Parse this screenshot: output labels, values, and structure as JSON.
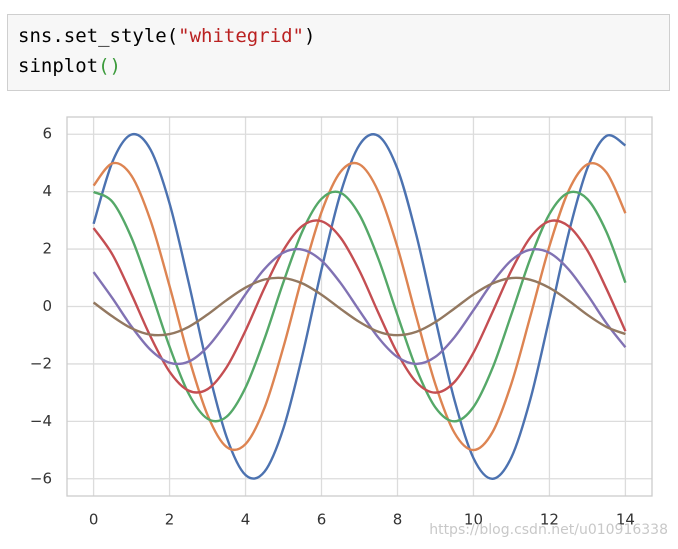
{
  "code": {
    "lines": [
      [
        "sns.set_style(",
        "\"whitegrid\"",
        ")"
      ],
      [
        "sinplot",
        "()"
      ]
    ]
  },
  "chart_data": {
    "type": "line",
    "x": [
      0,
      0.5,
      1,
      1.5,
      2,
      2.5,
      3,
      3.5,
      4,
      4.5,
      5,
      5.5,
      6,
      6.5,
      7,
      7.5,
      8,
      8.5,
      9,
      9.5,
      10,
      10.5,
      11,
      11.5,
      12,
      12.5,
      13,
      13.5,
      14
    ],
    "series": [
      {
        "color": "#4c72b0",
        "values": [
          2.88,
          5.05,
          5.99,
          5.46,
          3.59,
          0.85,
          -2.1,
          -4.54,
          -5.87,
          -5.75,
          -4.23,
          -1.68,
          1.29,
          3.94,
          5.63,
          5.94,
          4.79,
          2.47,
          -0.45,
          -3.26,
          -5.28,
          -6.0,
          -5.25,
          -3.22,
          -0.4,
          2.52,
          4.82,
          5.94,
          5.61
        ]
      },
      {
        "color": "#dd8452",
        "values": [
          4.21,
          4.99,
          4.55,
          2.99,
          0.71,
          -1.75,
          -3.78,
          -4.89,
          -4.79,
          -3.53,
          -1.4,
          1.08,
          3.29,
          4.69,
          4.95,
          3.99,
          2.06,
          -0.38,
          -2.72,
          -4.4,
          -5.0,
          -4.38,
          -2.68,
          -0.33,
          2.1,
          4.02,
          4.95,
          4.67,
          3.25
        ]
      },
      {
        "color": "#55a868",
        "values": [
          3.99,
          3.64,
          2.39,
          0.56,
          -1.4,
          -3.03,
          -3.91,
          -3.84,
          -2.82,
          -1.12,
          0.86,
          2.63,
          3.75,
          3.96,
          3.19,
          1.65,
          -0.3,
          -2.18,
          -3.52,
          -4.0,
          -3.5,
          -2.15,
          -0.27,
          1.68,
          3.22,
          3.96,
          3.74,
          2.6,
          0.83
        ]
      },
      {
        "color": "#c44e52",
        "values": [
          2.73,
          1.8,
          0.42,
          -1.05,
          -2.27,
          -2.93,
          -2.88,
          -2.12,
          -0.84,
          0.65,
          1.97,
          2.81,
          2.97,
          2.4,
          1.24,
          -0.23,
          -1.63,
          -2.64,
          -3.0,
          -2.63,
          -1.61,
          -0.2,
          1.26,
          2.41,
          2.97,
          2.8,
          1.95,
          0.62,
          -0.86
        ]
      },
      {
        "color": "#8172b3",
        "values": [
          1.2,
          0.28,
          -0.7,
          -1.51,
          -1.96,
          -1.92,
          -1.41,
          -0.56,
          0.43,
          1.31,
          1.88,
          1.98,
          1.6,
          0.82,
          -0.15,
          -1.09,
          -1.76,
          -2.0,
          -1.75,
          -1.07,
          -0.13,
          0.84,
          1.61,
          1.98,
          1.87,
          1.3,
          0.41,
          -0.58,
          -1.42
        ]
      },
      {
        "color": "#937860",
        "values": [
          0.14,
          -0.35,
          -0.76,
          -0.98,
          -0.96,
          -0.71,
          -0.28,
          0.22,
          0.66,
          0.94,
          0.99,
          0.8,
          0.41,
          -0.08,
          -0.54,
          -0.88,
          -1.0,
          -0.88,
          -0.54,
          -0.07,
          0.42,
          0.8,
          0.99,
          0.93,
          0.65,
          0.21,
          -0.29,
          -0.71,
          -0.96
        ]
      }
    ],
    "xlim": [
      -0.7,
      14.7
    ],
    "ylim": [
      -6.6,
      6.6
    ],
    "xticks": [
      0,
      2,
      4,
      6,
      8,
      10,
      12,
      14
    ],
    "yticks": [
      {
        "value": -6,
        "label": "−6"
      },
      {
        "value": -4,
        "label": "−4"
      },
      {
        "value": -2,
        "label": "−2"
      },
      0,
      2,
      4,
      6
    ],
    "grid": true,
    "watermark": "https://blog.csdn.net/u010916338"
  }
}
